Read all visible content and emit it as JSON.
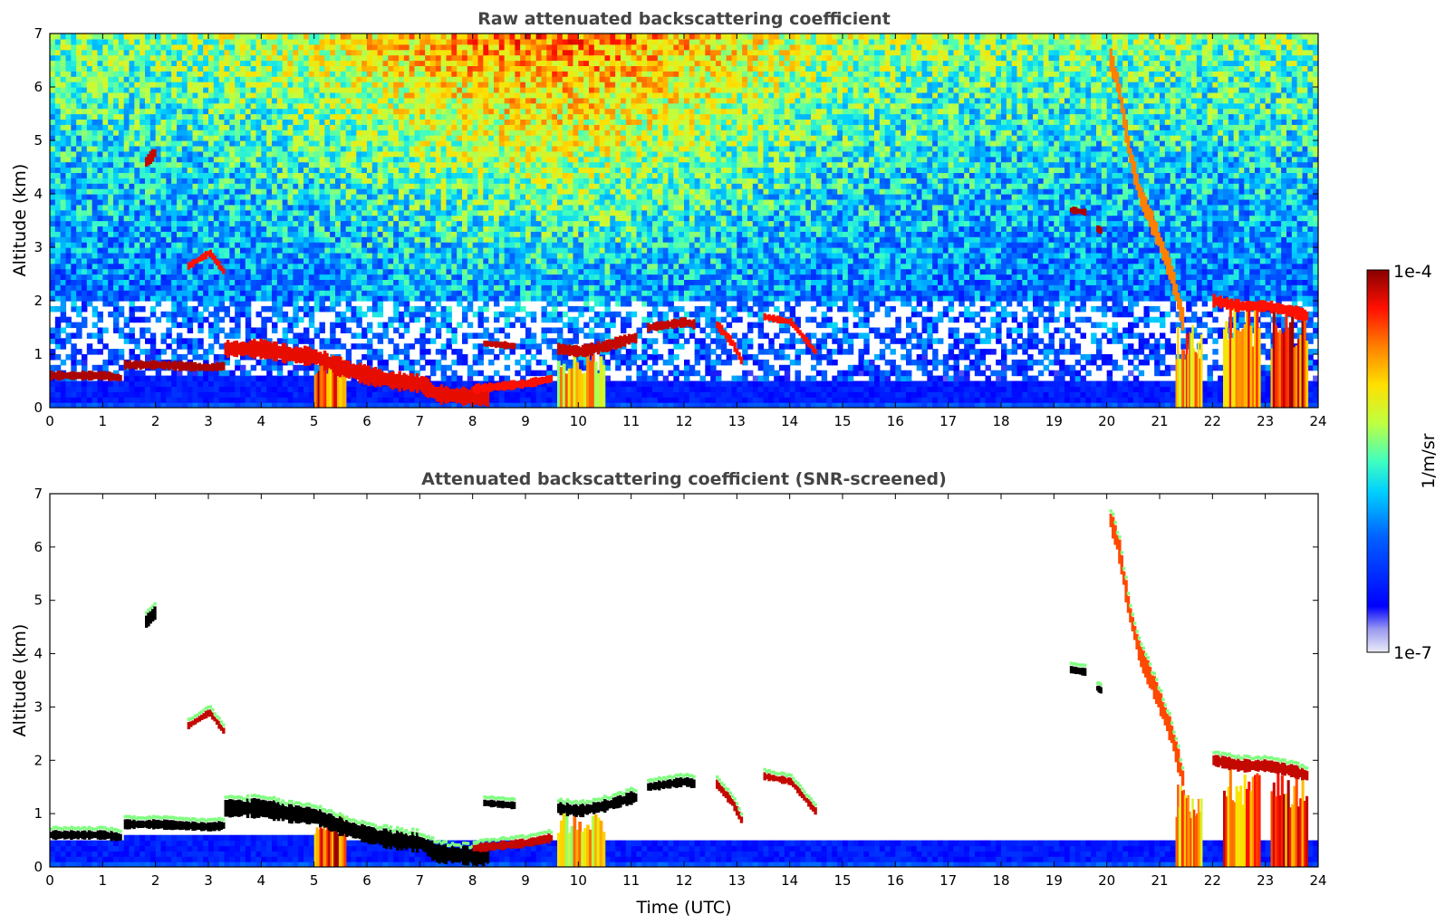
{
  "chart_data": [
    {
      "type": "heatmap",
      "title": "Raw attenuated backscattering coefficient",
      "xlabel": "",
      "ylabel": "Altitude (km)",
      "xlim": [
        0,
        24
      ],
      "ylim": [
        0,
        7
      ],
      "xticks": [
        "0",
        "1",
        "2",
        "3",
        "4",
        "5",
        "6",
        "7",
        "8",
        "9",
        "10",
        "11",
        "12",
        "13",
        "14",
        "15",
        "16",
        "17",
        "18",
        "19",
        "20",
        "21",
        "22",
        "23",
        "24"
      ],
      "yticks": [
        "0",
        "1",
        "2",
        "3",
        "4",
        "5",
        "6",
        "7"
      ],
      "colormap": "jet",
      "features": [
        {
          "kind": "cloud_layer",
          "points": [
            [
              0,
              0.6
            ],
            [
              0.5,
              0.6
            ],
            [
              1,
              0.6
            ],
            [
              1.35,
              0.55
            ]
          ],
          "thickness": 0.15,
          "level": 0.97
        },
        {
          "kind": "cloud_layer",
          "points": [
            [
              1.4,
              0.8
            ],
            [
              2,
              0.8
            ],
            [
              3,
              0.75
            ],
            [
              3.3,
              0.78
            ]
          ],
          "thickness": 0.15,
          "level": 0.97
        },
        {
          "kind": "cloud_layer",
          "points": [
            [
              3.3,
              1.1
            ],
            [
              4,
              1.1
            ],
            [
              4.5,
              1.0
            ],
            [
              5,
              0.95
            ],
            [
              5.5,
              0.75
            ],
            [
              6,
              0.6
            ],
            [
              6.5,
              0.5
            ],
            [
              7,
              0.45
            ],
            [
              7.3,
              0.25
            ],
            [
              8,
              0.2
            ],
            [
              8.3,
              0.2
            ]
          ],
          "thickness": 0.3,
          "level": 0.92
        },
        {
          "kind": "cloud_layer",
          "points": [
            [
              8,
              0.35
            ],
            [
              8.5,
              0.4
            ],
            [
              9,
              0.45
            ],
            [
              9.5,
              0.55
            ]
          ],
          "thickness": 0.15,
          "level": 0.9
        },
        {
          "kind": "cloud_layer",
          "points": [
            [
              8.2,
              1.2
            ],
            [
              8.8,
              1.15
            ]
          ],
          "thickness": 0.12,
          "level": 0.95
        },
        {
          "kind": "cloud_layer",
          "points": [
            [
              9.6,
              1.1
            ],
            [
              10,
              1.05
            ],
            [
              10.5,
              1.15
            ],
            [
              11,
              1.3
            ],
            [
              11.1,
              1.3
            ]
          ],
          "thickness": 0.2,
          "level": 0.95
        },
        {
          "kind": "cloud_layer",
          "points": [
            [
              11.3,
              1.5
            ],
            [
              12,
              1.6
            ],
            [
              12.2,
              1.55
            ]
          ],
          "thickness": 0.15,
          "level": 0.95
        },
        {
          "kind": "cloud_layer",
          "points": [
            [
              12.6,
              1.55
            ],
            [
              12.9,
              1.2
            ],
            [
              13.1,
              0.8
            ]
          ],
          "thickness": 0.15,
          "level": 0.9
        },
        {
          "kind": "cloud_layer",
          "points": [
            [
              13.5,
              1.7
            ],
            [
              14,
              1.6
            ],
            [
              14.5,
              1.0
            ]
          ],
          "thickness": 0.12,
          "level": 0.9
        },
        {
          "kind": "cloud_layer",
          "points": [
            [
              19.3,
              3.7
            ],
            [
              19.6,
              3.65
            ]
          ],
          "thickness": 0.12,
          "level": 0.97
        },
        {
          "kind": "cloud_layer",
          "points": [
            [
              19.8,
              3.35
            ],
            [
              19.9,
              3.3
            ]
          ],
          "thickness": 0.12,
          "level": 0.97
        },
        {
          "kind": "cloud_layer",
          "points": [
            [
              20.05,
              6.5
            ],
            [
              20.2,
              6.0
            ],
            [
              20.4,
              4.8
            ],
            [
              20.6,
              4.0
            ],
            [
              20.9,
              3.3
            ],
            [
              21.2,
              2.5
            ],
            [
              21.45,
              1.5
            ]
          ],
          "thickness": 0.35,
          "level": 0.8
        },
        {
          "kind": "cloud_layer",
          "points": [
            [
              22.0,
              2.0
            ],
            [
              22.5,
              1.9
            ],
            [
              23,
              1.9
            ],
            [
              23.5,
              1.8
            ],
            [
              23.8,
              1.7
            ]
          ],
          "thickness": 0.2,
          "level": 0.9
        },
        {
          "kind": "cloud_layer",
          "points": [
            [
              1.8,
              4.6
            ],
            [
              2.0,
              4.8
            ]
          ],
          "thickness": 0.2,
          "level": 0.95
        },
        {
          "kind": "cloud_layer",
          "points": [
            [
              2.6,
              2.65
            ],
            [
              3.0,
              2.9
            ],
            [
              3.3,
              2.5
            ]
          ],
          "thickness": 0.12,
          "level": 0.9
        },
        {
          "kind": "boundary_layer",
          "points": [
            [
              0,
              0.5
            ],
            [
              1.4,
              0.5
            ],
            [
              1.4,
              0.6
            ],
            [
              5,
              0.55
            ],
            [
              8,
              0.45
            ],
            [
              13,
              0.5
            ],
            [
              18,
              0.45
            ],
            [
              21,
              0.45
            ],
            [
              24,
              0.45
            ]
          ],
          "level": 0.12
        },
        {
          "kind": "fall_streak",
          "x": [
            21.3,
            21.8
          ],
          "top": 1.5,
          "level": 0.75
        },
        {
          "kind": "fall_streak",
          "x": [
            22.2,
            22.9
          ],
          "top": 1.9,
          "level": 0.8
        },
        {
          "kind": "fall_streak",
          "x": [
            23.1,
            23.8
          ],
          "top": 1.8,
          "level": 0.85
        },
        {
          "kind": "fall_streak",
          "x": [
            9.6,
            10.5
          ],
          "top": 1.05,
          "level": 0.7
        },
        {
          "kind": "fall_streak",
          "x": [
            5.0,
            5.6
          ],
          "top": 0.95,
          "level": 0.85
        }
      ]
    },
    {
      "type": "heatmap",
      "title": "Attenuated backscattering coefficient (SNR-screened)",
      "xlabel": "Time (UTC)",
      "ylabel": "Altitude (km)",
      "xlim": [
        0,
        24
      ],
      "ylim": [
        0,
        7
      ],
      "xticks": [
        "0",
        "1",
        "2",
        "3",
        "4",
        "5",
        "6",
        "7",
        "8",
        "9",
        "10",
        "11",
        "12",
        "13",
        "14",
        "15",
        "16",
        "17",
        "18",
        "19",
        "20",
        "21",
        "22",
        "23",
        "24"
      ],
      "yticks": [
        "0",
        "1",
        "2",
        "3",
        "4",
        "5",
        "6",
        "7"
      ],
      "colormap": "jet",
      "features": "same as raw panel, noise removed above boundary layer"
    }
  ],
  "colorbar": {
    "label": "1/m/sr",
    "max_label": "1e-4",
    "min_label": "1e-7",
    "colormap": "jet"
  },
  "colors": {
    "axis": "#000000",
    "title": "#444444"
  }
}
